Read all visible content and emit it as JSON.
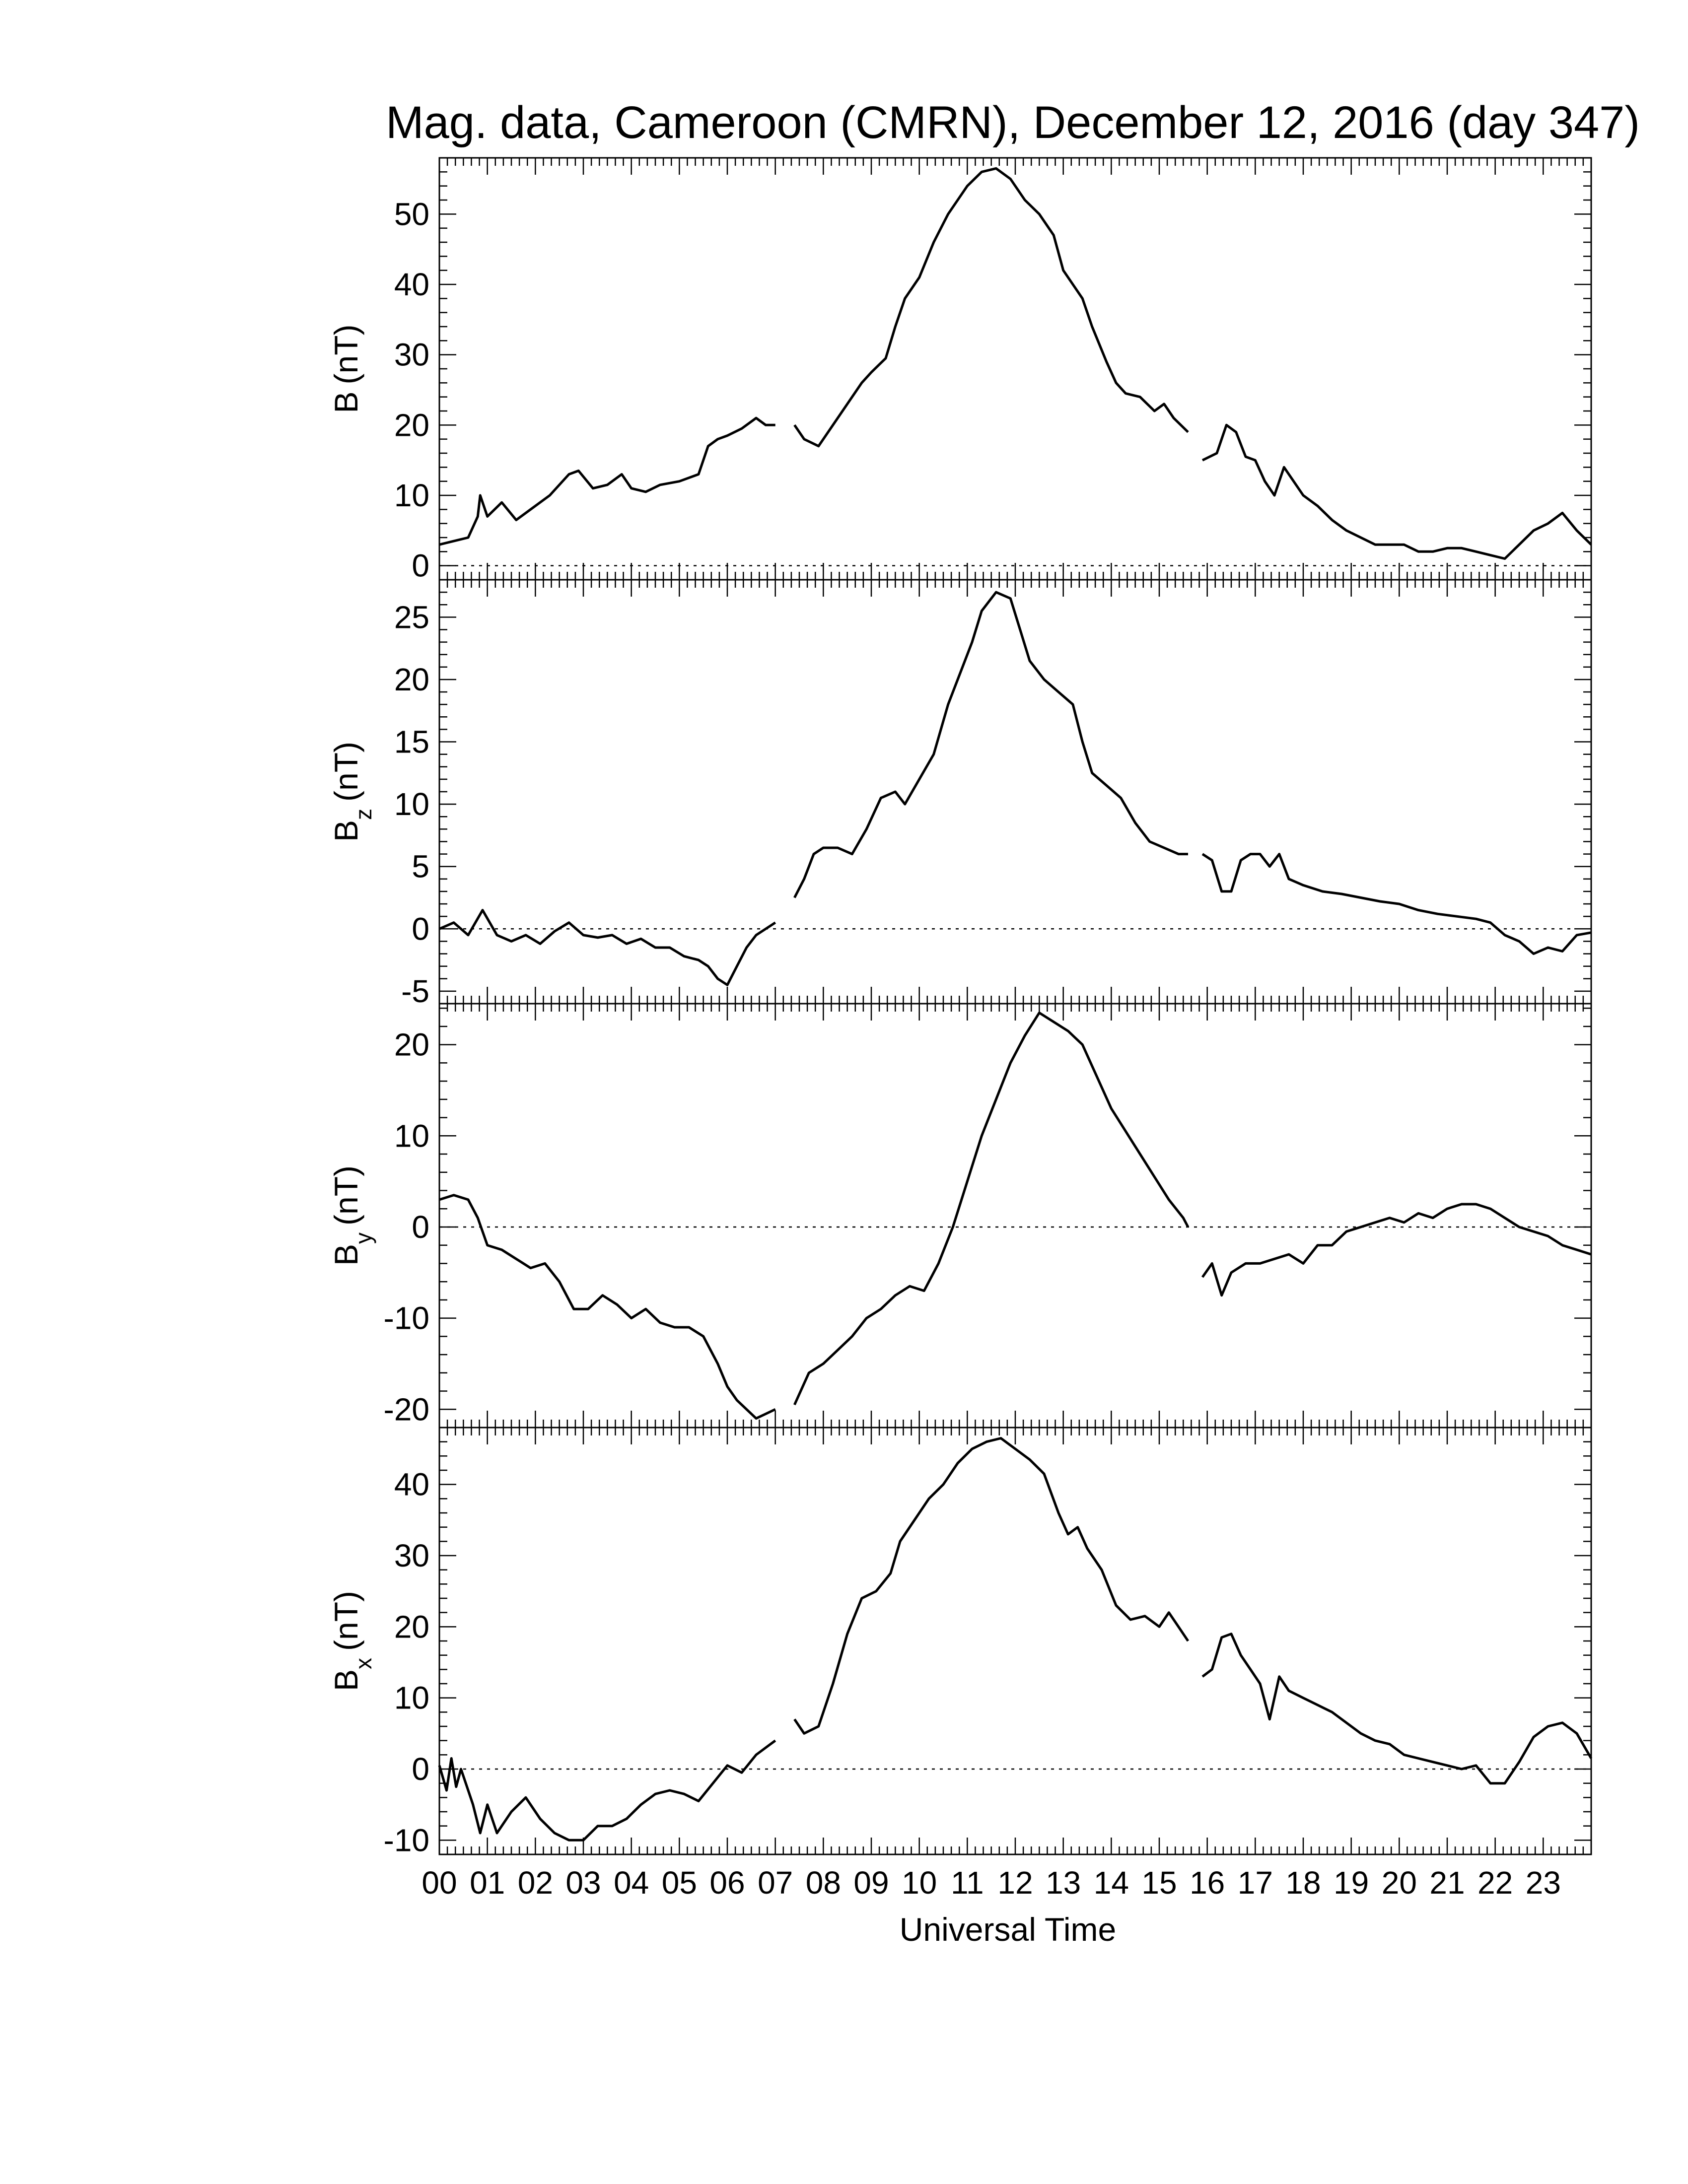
{
  "title": "Mag. data, Cameroon (CMRN), December 12, 2016 (day 347)",
  "xlabel": "Universal Time",
  "colors": {
    "line": "#000000",
    "background": "#ffffff",
    "zero_line": "#000000"
  },
  "chart_data": [
    {
      "type": "line",
      "name": "B",
      "ylabel": {
        "main": "B",
        "sub": "",
        "unit": "(nT)"
      },
      "ylim": [
        -2,
        58
      ],
      "yticks": [
        0,
        10,
        20,
        30,
        40,
        50
      ],
      "ytick_labels": [
        "0",
        "10",
        "20",
        "30",
        "40",
        "50"
      ],
      "zero_line": true,
      "segments": [
        {
          "x": [
            0,
            0.3,
            0.6,
            0.8,
            0.85,
            1.0,
            1.3,
            1.6,
            1.9,
            2.3,
            2.7,
            2.9,
            3.2,
            3.5,
            3.8,
            4.0,
            4.3,
            4.6,
            5.0,
            5.4,
            5.6,
            5.8,
            6.0,
            6.3,
            6.6,
            6.8,
            7.0
          ],
          "y": [
            3,
            3.5,
            4,
            7,
            10,
            7,
            9,
            6.5,
            8,
            10,
            13,
            13.5,
            11,
            11.5,
            13,
            11,
            10.5,
            11.5,
            12,
            13,
            17,
            18,
            18.5,
            19.5,
            21,
            20,
            20
          ]
        },
        {
          "x": [
            7.4,
            7.6,
            7.9,
            8.2,
            8.5,
            8.8,
            9.0,
            9.3,
            9.5,
            9.7,
            10.0,
            10.3,
            10.6,
            10.8,
            11.0,
            11.3,
            11.6,
            11.9,
            12.2,
            12.5,
            12.8,
            13.0,
            13.2,
            13.4,
            13.6,
            13.9,
            14.1,
            14.3,
            14.6,
            14.9,
            15.1,
            15.3,
            15.6
          ],
          "y": [
            20,
            18,
            17,
            20,
            23,
            26,
            27.5,
            29.5,
            34,
            38,
            41,
            46,
            50,
            52,
            54,
            56,
            56.5,
            55,
            52,
            50,
            47,
            42,
            40,
            38,
            34,
            29,
            26,
            24.5,
            24,
            22,
            23,
            21,
            19
          ]
        },
        {
          "x": [
            15.9,
            16.2,
            16.4,
            16.6,
            16.8,
            17.0,
            17.2,
            17.4,
            17.6,
            17.8,
            18.0,
            18.3,
            18.6,
            18.9,
            19.2,
            19.5,
            19.8,
            20.1,
            20.4,
            20.7,
            21.0,
            21.3,
            21.6,
            21.9,
            22.2,
            22.5,
            22.8,
            23.1,
            23.4,
            23.7,
            24.0
          ],
          "y": [
            15,
            16,
            20,
            19,
            15.5,
            15,
            12,
            10,
            14,
            12,
            10,
            8.5,
            6.5,
            5,
            4,
            3,
            3,
            3,
            2,
            2,
            2.5,
            2.5,
            2,
            1.5,
            1,
            3,
            5,
            6,
            7.5,
            5,
            3
          ]
        }
      ]
    },
    {
      "type": "line",
      "name": "Bz",
      "ylabel": {
        "main": "B",
        "sub": "z",
        "unit": "(nT)"
      },
      "ylim": [
        -6,
        28
      ],
      "yticks": [
        -5,
        0,
        5,
        10,
        15,
        20,
        25
      ],
      "ytick_labels": [
        "-5",
        "0",
        "5",
        "10",
        "15",
        "20",
        "25"
      ],
      "zero_line": true,
      "segments": [
        {
          "x": [
            0,
            0.3,
            0.6,
            0.9,
            1.2,
            1.5,
            1.8,
            2.1,
            2.4,
            2.7,
            3.0,
            3.3,
            3.6,
            3.9,
            4.2,
            4.5,
            4.8,
            5.1,
            5.4,
            5.6,
            5.8,
            6.0,
            6.2,
            6.4,
            6.6,
            6.8,
            7.0
          ],
          "y": [
            0,
            0.5,
            -0.5,
            1.5,
            -0.5,
            -1,
            -0.5,
            -1.2,
            -0.2,
            0.5,
            -0.5,
            -0.7,
            -0.5,
            -1.2,
            -0.8,
            -1.5,
            -1.5,
            -2.2,
            -2.5,
            -3,
            -4,
            -4.5,
            -3,
            -1.5,
            -0.5,
            0,
            0.5
          ]
        },
        {
          "x": [
            7.4,
            7.6,
            7.8,
            8.0,
            8.3,
            8.6,
            8.9,
            9.2,
            9.5,
            9.7,
            10.0,
            10.3,
            10.6,
            10.9,
            11.1,
            11.3,
            11.6,
            11.9,
            12.1,
            12.3,
            12.6,
            12.9,
            13.2,
            13.4,
            13.6,
            13.9,
            14.2,
            14.5,
            14.8,
            15.1,
            15.4,
            15.6
          ],
          "y": [
            2.5,
            4,
            6,
            6.5,
            6.5,
            6,
            8,
            10.5,
            11,
            10,
            12,
            14,
            18,
            21,
            23,
            25.5,
            27,
            26.5,
            24,
            21.5,
            20,
            19,
            18,
            15,
            12.5,
            11.5,
            10.5,
            8.5,
            7,
            6.5,
            6,
            6
          ]
        },
        {
          "x": [
            15.9,
            16.1,
            16.3,
            16.5,
            16.7,
            16.9,
            17.1,
            17.3,
            17.5,
            17.7,
            18.0,
            18.4,
            18.8,
            19.2,
            19.6,
            20.0,
            20.4,
            20.8,
            21.2,
            21.6,
            21.9,
            22.2,
            22.5,
            22.8,
            23.1,
            23.4,
            23.7,
            24.0
          ],
          "y": [
            6,
            5.5,
            3,
            3,
            5.5,
            6,
            6,
            5,
            6,
            4,
            3.5,
            3,
            2.8,
            2.5,
            2.2,
            2,
            1.5,
            1.2,
            1,
            0.8,
            0.5,
            -0.5,
            -1,
            -2,
            -1.5,
            -1.8,
            -0.5,
            -0.3
          ]
        }
      ]
    },
    {
      "type": "line",
      "name": "By",
      "ylabel": {
        "main": "B",
        "sub": "y",
        "unit": "(nT)"
      },
      "ylim": [
        -22,
        24.5
      ],
      "yticks": [
        -20,
        -10,
        0,
        10,
        20
      ],
      "ytick_labels": [
        "-20",
        "-10",
        "0",
        "10",
        "20"
      ],
      "zero_line": true,
      "segments": [
        {
          "x": [
            0,
            0.3,
            0.6,
            0.8,
            1.0,
            1.3,
            1.6,
            1.9,
            2.2,
            2.5,
            2.8,
            3.1,
            3.4,
            3.7,
            4.0,
            4.3,
            4.6,
            4.9,
            5.2,
            5.5,
            5.8,
            6.0,
            6.2,
            6.4,
            6.6,
            6.8,
            7.0
          ],
          "y": [
            3,
            3.5,
            3,
            1,
            -2,
            -2.5,
            -3.5,
            -4.5,
            -4,
            -6,
            -9,
            -9,
            -7.5,
            -8.5,
            -10,
            -9,
            -10.5,
            -11,
            -11,
            -12,
            -15,
            -17.5,
            -19,
            -20,
            -21,
            -20.5,
            -20
          ]
        },
        {
          "x": [
            7.4,
            7.7,
            8.0,
            8.3,
            8.6,
            8.9,
            9.2,
            9.5,
            9.8,
            10.1,
            10.4,
            10.7,
            11.0,
            11.3,
            11.6,
            11.9,
            12.2,
            12.5,
            12.8,
            13.1,
            13.4,
            13.7,
            14.0,
            14.3,
            14.6,
            14.9,
            15.2,
            15.5,
            15.6
          ],
          "y": [
            -19.5,
            -16,
            -15,
            -13.5,
            -12,
            -10,
            -9,
            -7.5,
            -6.5,
            -7,
            -4,
            0,
            5,
            10,
            14,
            18,
            21,
            23.5,
            22.5,
            21.5,
            20,
            16.5,
            13,
            10.5,
            8,
            5.5,
            3,
            1,
            0
          ]
        },
        {
          "x": [
            15.9,
            16.1,
            16.3,
            16.5,
            16.8,
            17.1,
            17.4,
            17.7,
            18.0,
            18.3,
            18.6,
            18.9,
            19.2,
            19.5,
            19.8,
            20.1,
            20.4,
            20.7,
            21.0,
            21.3,
            21.6,
            21.9,
            22.2,
            22.5,
            22.8,
            23.1,
            23.4,
            23.7,
            24.0
          ],
          "y": [
            -5.5,
            -4,
            -7.5,
            -5,
            -4,
            -4,
            -3.5,
            -3,
            -4,
            -2,
            -2,
            -0.5,
            0,
            0.5,
            1,
            0.5,
            1.5,
            1,
            2,
            2.5,
            2.5,
            2,
            1,
            0,
            -0.5,
            -1,
            -2,
            -2.5,
            -3
          ]
        }
      ]
    },
    {
      "type": "line",
      "name": "Bx",
      "ylabel": {
        "main": "B",
        "sub": "x",
        "unit": "(nT)"
      },
      "ylim": [
        -12,
        48
      ],
      "yticks": [
        -10,
        0,
        10,
        20,
        30,
        40
      ],
      "ytick_labels": [
        "-10",
        "0",
        "10",
        "20",
        "30",
        "40"
      ],
      "zero_line": true,
      "segments": [
        {
          "x": [
            0,
            0.15,
            0.25,
            0.35,
            0.45,
            0.55,
            0.7,
            0.85,
            1.0,
            1.2,
            1.5,
            1.8,
            2.1,
            2.4,
            2.7,
            3.0,
            3.3,
            3.6,
            3.9,
            4.2,
            4.5,
            4.8,
            5.1,
            5.4,
            5.7,
            6.0,
            6.3,
            6.6,
            6.9,
            7.0
          ],
          "y": [
            0.5,
            -3,
            1.5,
            -2.5,
            0,
            -2,
            -5,
            -9,
            -5,
            -9,
            -6,
            -4,
            -7,
            -9,
            -10,
            -10,
            -8,
            -8,
            -7,
            -5,
            -3.5,
            -3,
            -3.5,
            -4.5,
            -2,
            0.5,
            -0.5,
            2,
            3.5,
            4
          ]
        },
        {
          "x": [
            7.4,
            7.6,
            7.9,
            8.2,
            8.5,
            8.8,
            9.1,
            9.4,
            9.6,
            9.9,
            10.2,
            10.5,
            10.8,
            11.1,
            11.4,
            11.7,
            12.0,
            12.3,
            12.6,
            12.9,
            13.1,
            13.3,
            13.5,
            13.8,
            14.1,
            14.4,
            14.7,
            15.0,
            15.2,
            15.4,
            15.6
          ],
          "y": [
            7,
            5,
            6,
            12,
            19,
            24,
            25,
            27.5,
            32,
            35,
            38,
            40,
            43,
            45,
            46,
            46.5,
            45,
            43.5,
            41.5,
            36,
            33,
            34,
            31,
            28,
            23,
            21,
            21.5,
            20,
            22,
            20,
            18
          ]
        },
        {
          "x": [
            15.9,
            16.1,
            16.3,
            16.5,
            16.7,
            16.9,
            17.1,
            17.3,
            17.5,
            17.7,
            18.0,
            18.3,
            18.6,
            18.9,
            19.2,
            19.5,
            19.8,
            20.1,
            20.4,
            20.7,
            21.0,
            21.3,
            21.6,
            21.9,
            22.2,
            22.5,
            22.8,
            23.1,
            23.4,
            23.7,
            24.0
          ],
          "y": [
            13,
            14,
            18.5,
            19,
            16,
            14,
            12,
            7,
            13,
            11,
            10,
            9,
            8,
            6.5,
            5,
            4,
            3.5,
            2,
            1.5,
            1,
            0.5,
            0,
            0.5,
            -2,
            -2,
            1,
            4.5,
            6,
            6.5,
            5,
            1.5
          ]
        }
      ]
    }
  ],
  "xaxis": {
    "range": [
      0,
      24
    ],
    "tick_labels": [
      "00",
      "01",
      "02",
      "03",
      "04",
      "05",
      "06",
      "07",
      "08",
      "09",
      "10",
      "11",
      "12",
      "13",
      "14",
      "15",
      "16",
      "17",
      "18",
      "19",
      "20",
      "21",
      "22",
      "23"
    ]
  }
}
